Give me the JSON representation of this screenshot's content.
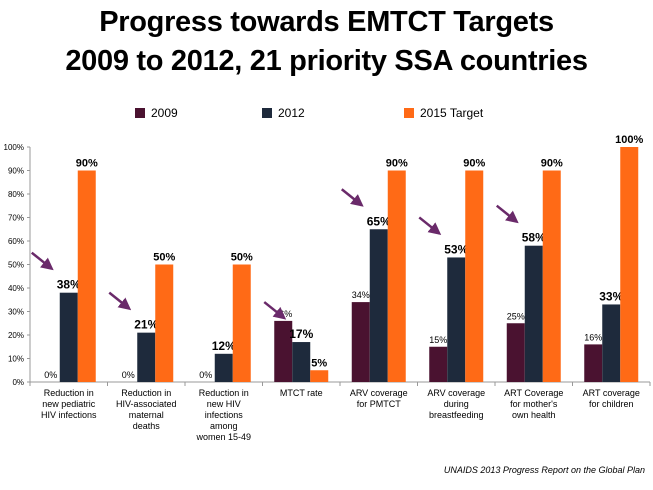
{
  "title_line1": "Progress towards EMTCT Targets",
  "title_line2": "2009 to 2012, 21 priority  SSA countries",
  "source": "UNAIDS 2013 Progress Report  on the Global Plan",
  "colors": {
    "s2009": "#4a1230",
    "s2012": "#1e2a3c",
    "target": "#ff6a16",
    "arrow": "#6a2a6a"
  },
  "chart_data": {
    "type": "bar",
    "categories": [
      [
        "Reduction in",
        "new pediatric",
        "HIV infections"
      ],
      [
        "Reduction in",
        "HIV-associated",
        "maternal",
        "deaths"
      ],
      [
        "Reduction in",
        "new HIV",
        "infections",
        "among",
        "women 15-49"
      ],
      [
        "MTCT  rate"
      ],
      [
        "ARV coverage",
        "for PMTCT"
      ],
      [
        "ARV coverage",
        "during",
        "breastfeeding"
      ],
      [
        "ART Coverage",
        "for mother's",
        "own health"
      ],
      [
        "ART coverage",
        "for children"
      ]
    ],
    "series": [
      {
        "name": "2009",
        "values": [
          0,
          0,
          0,
          26,
          34,
          15,
          25,
          16
        ],
        "labels": [
          "0%",
          "0%",
          "0%",
          "26%",
          "34%",
          "15%",
          "25%",
          "16%"
        ]
      },
      {
        "name": "2012",
        "values": [
          38,
          21,
          12,
          17,
          65,
          53,
          58,
          33
        ],
        "labels": [
          "38%",
          "21%",
          "12%",
          "17%",
          "65%",
          "53%",
          "58%",
          "33%"
        ]
      },
      {
        "name": "2015 Target",
        "values": [
          90,
          50,
          50,
          5,
          90,
          90,
          90,
          100
        ],
        "labels": [
          "90%",
          "50%",
          "50%",
          "5%",
          "90%",
          "90%",
          "90%",
          "100%"
        ]
      }
    ],
    "arrows_on_2012": [
      true,
      true,
      false,
      true,
      true,
      true,
      true,
      false
    ],
    "ylim": [
      0,
      100
    ],
    "yticks": [
      "0%",
      "10%",
      "20%",
      "30%",
      "40%",
      "50%",
      "60%",
      "70%",
      "80%",
      "90%",
      "100%"
    ],
    "grid": false,
    "legend_position": "top"
  }
}
